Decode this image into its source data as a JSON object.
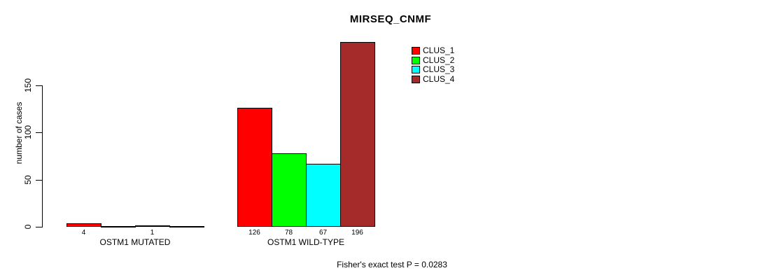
{
  "chart_data": {
    "type": "bar",
    "title": "MIRSEQ_CNMF",
    "xlabel": "",
    "ylabel": "number of cases",
    "yticks": [
      0,
      50,
      100,
      150
    ],
    "ylim": [
      0,
      200
    ],
    "grid": false,
    "legend_position": "top-right",
    "categories": [
      "OSTM1 MUTATED",
      "OSTM1 WILD-TYPE"
    ],
    "series": [
      {
        "name": "CLUS_1",
        "color": "#ff0000",
        "values": [
          4,
          126
        ]
      },
      {
        "name": "CLUS_2",
        "color": "#00ff00",
        "values": [
          0,
          78
        ]
      },
      {
        "name": "CLUS_3",
        "color": "#00ffff",
        "values": [
          1,
          67
        ]
      },
      {
        "name": "CLUS_4",
        "color": "#a52a2a",
        "values": [
          0,
          196
        ]
      }
    ],
    "bar_value_labels": [
      [
        "4",
        "",
        "1",
        ""
      ],
      [
        "126",
        "78",
        "67",
        "196"
      ]
    ],
    "annotation": "Fisher's exact test P = 0.0283"
  }
}
